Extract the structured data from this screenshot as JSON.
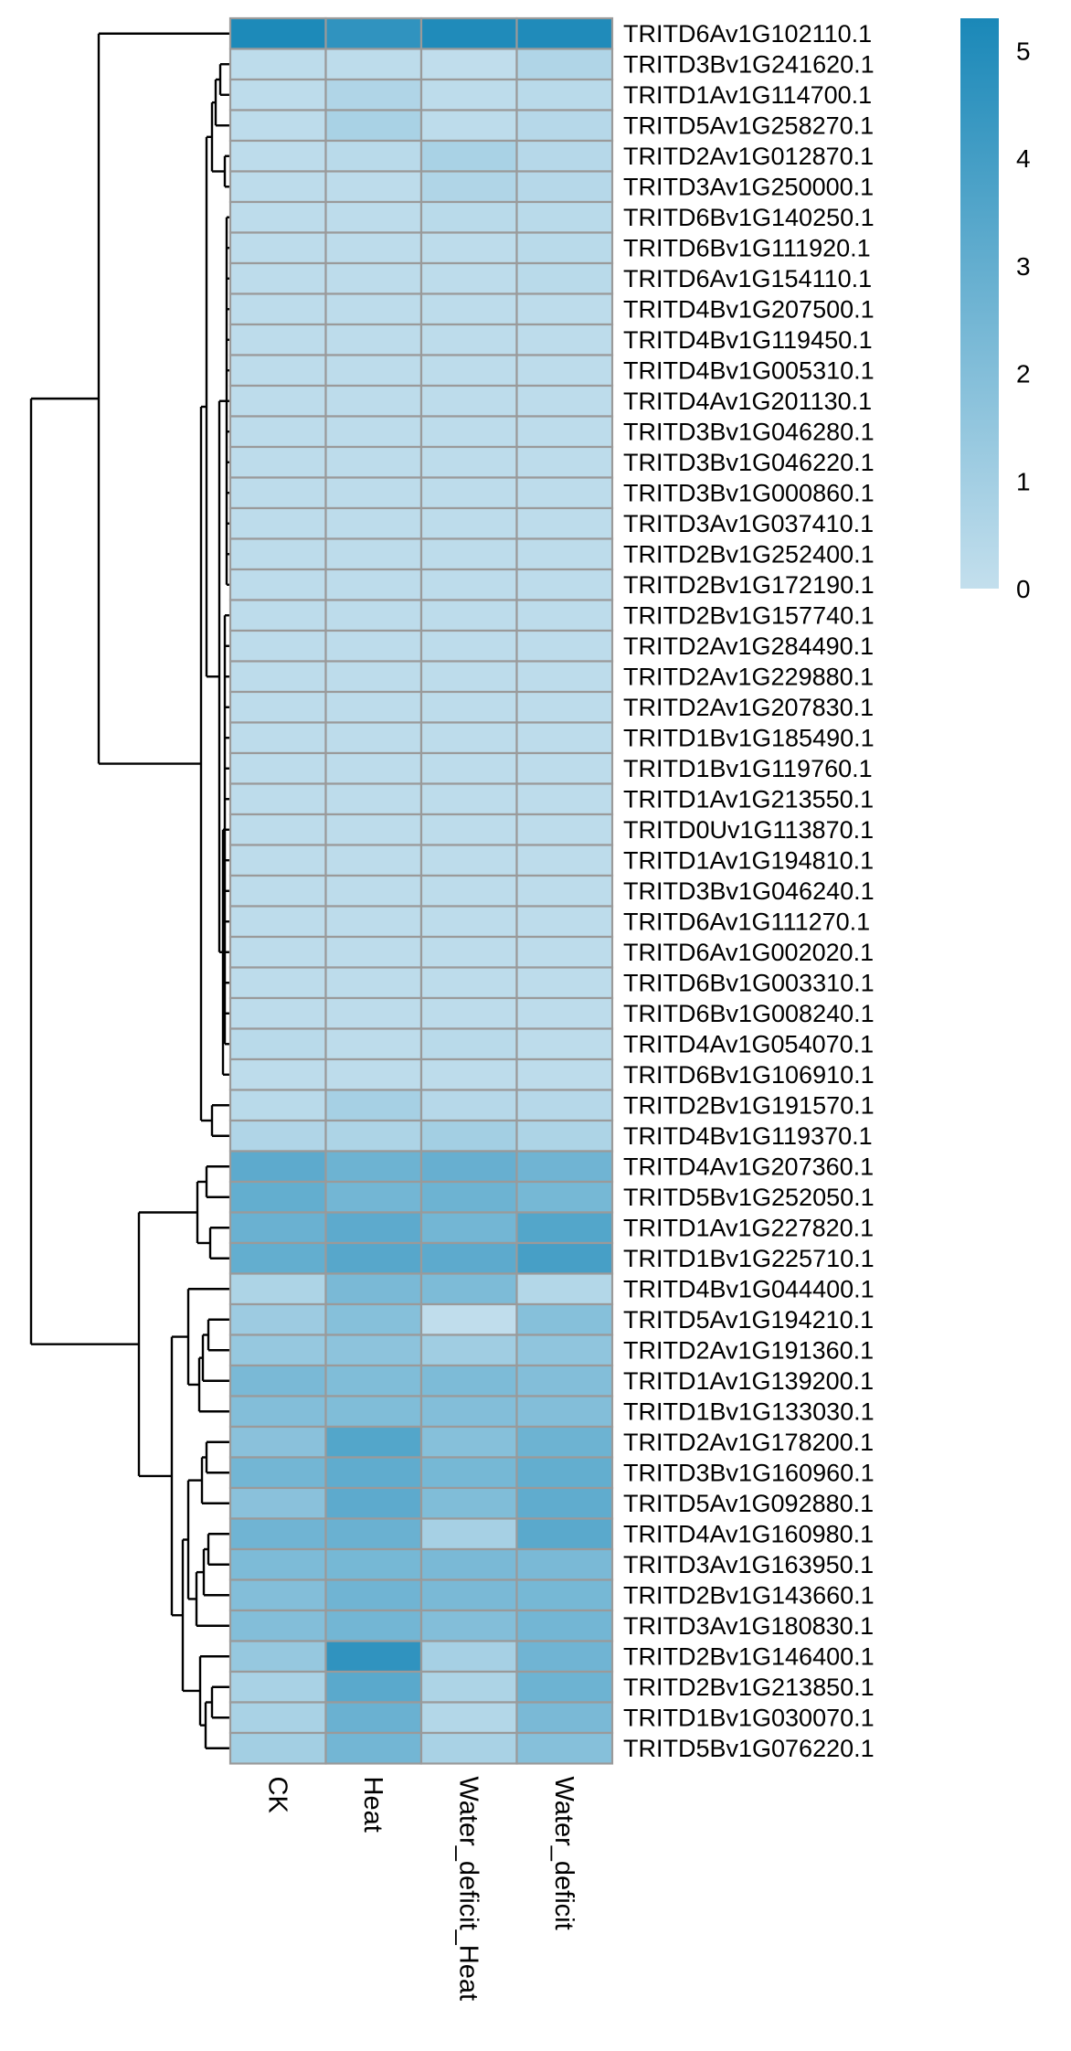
{
  "chart_data": {
    "type": "heatmap",
    "title": "",
    "xlabel": "",
    "ylabel": "",
    "columns": [
      "CK",
      "Heat",
      "Water_deficit_Heat",
      "Water_deficit"
    ],
    "rows": [
      "TRITD6Av1G102110.1",
      "TRITD3Bv1G241620.1",
      "TRITD1Av1G114700.1",
      "TRITD5Av1G258270.1",
      "TRITD2Av1G012870.1",
      "TRITD3Av1G250000.1",
      "TRITD6Bv1G140250.1",
      "TRITD6Bv1G111920.1",
      "TRITD6Av1G154110.1",
      "TRITD4Bv1G207500.1",
      "TRITD4Bv1G119450.1",
      "TRITD4Bv1G005310.1",
      "TRITD4Av1G201130.1",
      "TRITD3Bv1G046280.1",
      "TRITD3Bv1G046220.1",
      "TRITD3Bv1G000860.1",
      "TRITD3Av1G037410.1",
      "TRITD2Bv1G252400.1",
      "TRITD2Bv1G172190.1",
      "TRITD2Bv1G157740.1",
      "TRITD2Av1G284490.1",
      "TRITD2Av1G229880.1",
      "TRITD2Av1G207830.1",
      "TRITD1Bv1G185490.1",
      "TRITD1Bv1G119760.1",
      "TRITD1Av1G213550.1",
      "TRITD0Uv1G113870.1",
      "TRITD1Av1G194810.1",
      "TRITD3Bv1G046240.1",
      "TRITD6Av1G111270.1",
      "TRITD6Av1G002020.1",
      "TRITD6Bv1G003310.1",
      "TRITD6Bv1G008240.1",
      "TRITD4Av1G054070.1",
      "TRITD6Bv1G106910.1",
      "TRITD2Bv1G191570.1",
      "TRITD4Bv1G119370.1",
      "TRITD4Av1G207360.1",
      "TRITD5Bv1G252050.1",
      "TRITD1Av1G227820.1",
      "TRITD1Bv1G225710.1",
      "TRITD4Bv1G044400.1",
      "TRITD5Av1G194210.1",
      "TRITD2Av1G191360.1",
      "TRITD1Av1G139200.1",
      "TRITD1Bv1G133030.1",
      "TRITD2Av1G178200.1",
      "TRITD3Bv1G160960.1",
      "TRITD5Av1G092880.1",
      "TRITD4Av1G160980.1",
      "TRITD3Av1G163950.1",
      "TRITD2Bv1G143660.1",
      "TRITD3Av1G180830.1",
      "TRITD2Bv1G146400.1",
      "TRITD2Bv1G213850.1",
      "TRITD1Bv1G030070.1",
      "TRITD5Bv1G076220.1"
    ],
    "values": [
      [
        5.2,
        4.6,
        5.1,
        5.1
      ],
      [
        0.2,
        0.2,
        0.1,
        0.6
      ],
      [
        0.2,
        0.6,
        0.2,
        0.3
      ],
      [
        0.2,
        0.8,
        0.2,
        0.4
      ],
      [
        0.2,
        0.3,
        0.8,
        0.4
      ],
      [
        0.2,
        0.2,
        0.6,
        0.4
      ],
      [
        0.2,
        0.2,
        0.3,
        0.3
      ],
      [
        0.2,
        0.2,
        0.2,
        0.3
      ],
      [
        0.2,
        0.2,
        0.2,
        0.3
      ],
      [
        0.2,
        0.2,
        0.2,
        0.2
      ],
      [
        0.2,
        0.2,
        0.2,
        0.2
      ],
      [
        0.2,
        0.2,
        0.2,
        0.2
      ],
      [
        0.2,
        0.2,
        0.2,
        0.2
      ],
      [
        0.2,
        0.2,
        0.2,
        0.2
      ],
      [
        0.2,
        0.2,
        0.2,
        0.2
      ],
      [
        0.2,
        0.2,
        0.2,
        0.2
      ],
      [
        0.2,
        0.2,
        0.2,
        0.2
      ],
      [
        0.2,
        0.2,
        0.2,
        0.2
      ],
      [
        0.2,
        0.2,
        0.2,
        0.2
      ],
      [
        0.2,
        0.2,
        0.2,
        0.2
      ],
      [
        0.2,
        0.2,
        0.2,
        0.2
      ],
      [
        0.2,
        0.2,
        0.2,
        0.2
      ],
      [
        0.2,
        0.2,
        0.2,
        0.2
      ],
      [
        0.2,
        0.2,
        0.2,
        0.2
      ],
      [
        0.2,
        0.2,
        0.2,
        0.2
      ],
      [
        0.2,
        0.2,
        0.2,
        0.2
      ],
      [
        0.2,
        0.2,
        0.2,
        0.2
      ],
      [
        0.2,
        0.2,
        0.2,
        0.2
      ],
      [
        0.2,
        0.2,
        0.2,
        0.2
      ],
      [
        0.2,
        0.2,
        0.2,
        0.2
      ],
      [
        0.2,
        0.2,
        0.2,
        0.2
      ],
      [
        0.2,
        0.2,
        0.2,
        0.2
      ],
      [
        0.2,
        0.2,
        0.2,
        0.2
      ],
      [
        0.3,
        0.2,
        0.3,
        0.2
      ],
      [
        0.2,
        0.2,
        0.2,
        0.2
      ],
      [
        0.3,
        0.9,
        0.4,
        0.4
      ],
      [
        0.6,
        0.7,
        1.0,
        0.7
      ],
      [
        3.2,
        2.7,
        2.9,
        2.6
      ],
      [
        3.0,
        2.5,
        2.7,
        2.4
      ],
      [
        2.8,
        3.2,
        2.5,
        3.5
      ],
      [
        3.0,
        3.4,
        3.2,
        3.9
      ],
      [
        0.7,
        2.3,
        2.2,
        0.5
      ],
      [
        1.2,
        1.9,
        0.1,
        1.9
      ],
      [
        1.4,
        1.7,
        1.1,
        1.6
      ],
      [
        2.3,
        2.1,
        2.2,
        2.0
      ],
      [
        2.0,
        2.1,
        2.0,
        2.0
      ],
      [
        1.8,
        3.5,
        1.9,
        2.7
      ],
      [
        2.5,
        3.1,
        2.4,
        3.0
      ],
      [
        1.8,
        3.2,
        2.1,
        3.1
      ],
      [
        2.6,
        2.8,
        0.9,
        3.3
      ],
      [
        2.2,
        2.4,
        2.3,
        2.3
      ],
      [
        2.0,
        2.6,
        2.3,
        2.4
      ],
      [
        2.0,
        2.5,
        2.0,
        2.5
      ],
      [
        1.4,
        4.6,
        0.9,
        2.6
      ],
      [
        0.8,
        3.3,
        0.7,
        2.7
      ],
      [
        0.8,
        2.8,
        0.5,
        2.3
      ],
      [
        1.0,
        2.5,
        0.8,
        1.9
      ]
    ],
    "legend": {
      "placement": "top-right",
      "ticks": [
        0,
        1,
        2,
        3,
        4,
        5
      ],
      "min": 0,
      "max": 5.3,
      "color_low": "#c3dfed",
      "color_high": "#1a88b8"
    },
    "grid": false
  }
}
